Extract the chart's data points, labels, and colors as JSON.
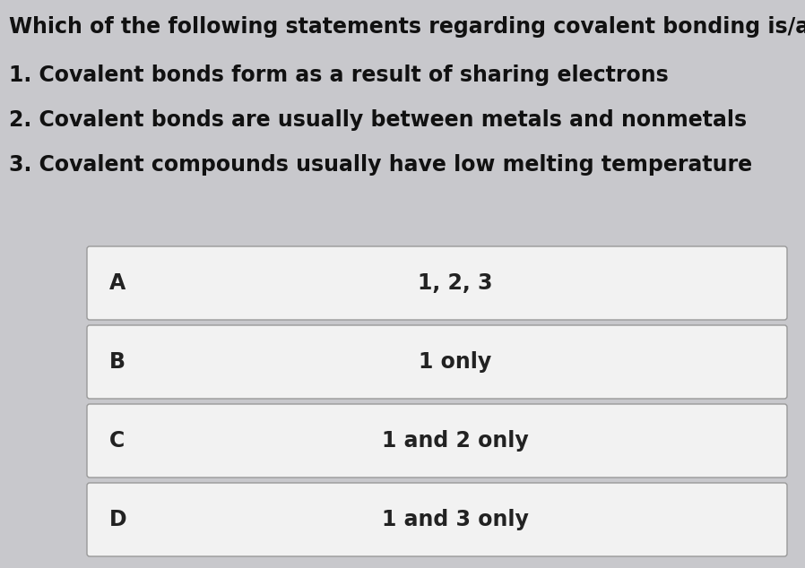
{
  "background_color": "#c8c8cc",
  "question_lines": [
    "Which of the following statements regarding covalent bonding is/are true?",
    "1. Covalent bonds form as a result of sharing electrons",
    "2. Covalent bonds are usually between metals and nonmetals",
    "3. Covalent compounds usually have low melting temperature"
  ],
  "options": [
    {
      "label": "A",
      "text": "1, 2, 3"
    },
    {
      "label": "B",
      "text": "1 only"
    },
    {
      "label": "C",
      "text": "1 and 2 only"
    },
    {
      "label": "D",
      "text": "1 and 3 only"
    }
  ],
  "box_bg_color": "#f2f2f2",
  "box_border_color": "#999999",
  "label_color": "#222222",
  "text_color": "#222222",
  "question_color": "#111111",
  "question_fontsize": 17,
  "option_fontsize": 17,
  "label_fontsize": 17,
  "fig_width": 8.98,
  "fig_height": 6.34,
  "dpi": 100
}
